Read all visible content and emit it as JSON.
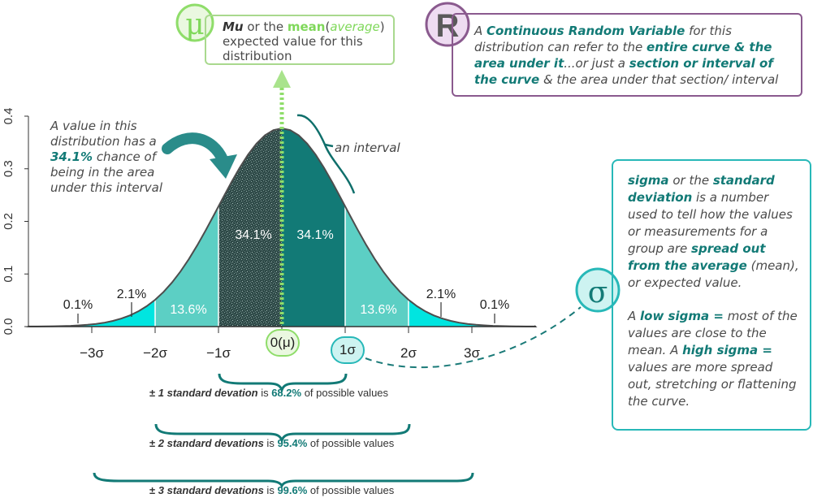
{
  "colors": {
    "teal_dark": "#127a76",
    "teal_mid": "#5ccfc4",
    "cyan_bright": "#00e5e0",
    "green_accent": "#7fd85a",
    "purple_border": "#8a5a8e",
    "sigma_border": "#27b8b8"
  },
  "axis": {
    "y_ticks": [
      "0.0",
      "0.1",
      "0.2",
      "0.3",
      "0.4"
    ],
    "x_ticks": [
      "−3σ",
      "−2σ",
      "−1σ",
      "0(μ)",
      "1σ",
      "2σ",
      "3σ"
    ]
  },
  "chart_data": {
    "type": "area",
    "description_curve": "standard normal density",
    "ylim": [
      0,
      0.4
    ],
    "xlim": [
      -4,
      4
    ],
    "x_tick_values": [
      -3,
      -2,
      -1,
      0,
      1,
      2,
      3
    ],
    "y_tick_values": [
      0,
      0.1,
      0.2,
      0.3,
      0.4
    ],
    "regions": [
      {
        "from": -1,
        "to": 0,
        "label": "34.1%"
      },
      {
        "from": 0,
        "to": 1,
        "label": "34.1%"
      },
      {
        "from": -2,
        "to": -1,
        "label": "13.6%"
      },
      {
        "from": 1,
        "to": 2,
        "label": "13.6%"
      },
      {
        "from": -3,
        "to": -2,
        "label": "2.1%"
      },
      {
        "from": 2,
        "to": 3,
        "label": "2.1%"
      },
      {
        "from": -4,
        "to": -3,
        "label": "0.1%"
      },
      {
        "from": 3,
        "to": 4,
        "label": "0.1%"
      }
    ]
  },
  "labels": {
    "pct_34_left": "34.1%",
    "pct_34_right": "34.1%",
    "pct_136_left": "13.6%",
    "pct_136_right": "13.6%",
    "pct_21_left": "2.1%",
    "pct_21_right": "2.1%",
    "pct_01_left": "0.1%",
    "pct_01_right": "0.1%",
    "an_interval": "an interval"
  },
  "mu_box": {
    "symbol": "μ",
    "mu": "Mu",
    "or_the": " or the ",
    "mean": "mean",
    "open": "(",
    "average": "average",
    "close": ")",
    "rest": "expected value for this distribution"
  },
  "r_box": {
    "symbol": "R",
    "t1": "A ",
    "b1": "Continuous Random Variable",
    "t2": " for this distribution can refer to the ",
    "b2": "entire curve & the area under it",
    "t3": "...or just a ",
    "b3": "section or interval of the curve",
    "t4": " & the area under that section/ interval"
  },
  "sigma_box": {
    "symbol": "σ",
    "b1": "sigma",
    "t1": " or the ",
    "b2": "standard deviation",
    "t2": " is a number used to tell how the values or measurements for a group are ",
    "b3": "spread out from the average",
    "t3": " (mean), or expected value.",
    "t4": "A ",
    "b4": "low sigma =",
    "t5": " most of the values are close to the mean. A ",
    "b5": "high sigma =",
    "t6": " values are more spread out, stretching or flattening the curve."
  },
  "left_note": {
    "t1": "A value in this distribution has a ",
    "b1": "34.1%",
    "t2": " chance of being in the  area under this interval"
  },
  "braces": [
    {
      "pm": "±",
      "italic": "1 standard devation",
      "mid": " is ",
      "pct": "68.2%",
      "end": " of possible values"
    },
    {
      "pm": "±",
      "italic": "2 standard devations",
      "mid": " is ",
      "pct": "95.4%",
      "end": " of possible values"
    },
    {
      "pm": "±",
      "italic": "3 standard devations",
      "mid": " is ",
      "pct": "99.6%",
      "end": " of possible values"
    }
  ]
}
